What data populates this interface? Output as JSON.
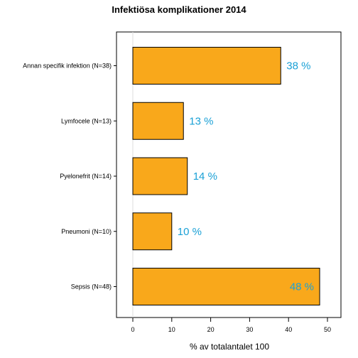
{
  "chart_data": {
    "type": "bar",
    "orientation": "horizontal",
    "title": "Infektiösa komplikationer 2014",
    "xlabel": "% av totalantalet 100",
    "ylabel": "",
    "categories": [
      "Annan specifik infektion (N=38)",
      "Lymfocele (N=13)",
      "Pyelonefrit (N=14)",
      "Pneumoni (N=10)",
      "Sepsis (N=48)"
    ],
    "values": [
      38,
      13,
      14,
      10,
      48
    ],
    "data_labels": [
      "38 %",
      "13 %",
      "14 %",
      "10 %",
      "48 %"
    ],
    "xlim": [
      0,
      50
    ],
    "xticks": [
      "0",
      "10",
      "20",
      "30",
      "40",
      "50"
    ],
    "grid": false,
    "legend": "none",
    "colors": {
      "bar_fill": "#F9A81B",
      "bar_stroke": "#000000",
      "data_label": "#1BA1D6",
      "frame": "#000000"
    }
  }
}
